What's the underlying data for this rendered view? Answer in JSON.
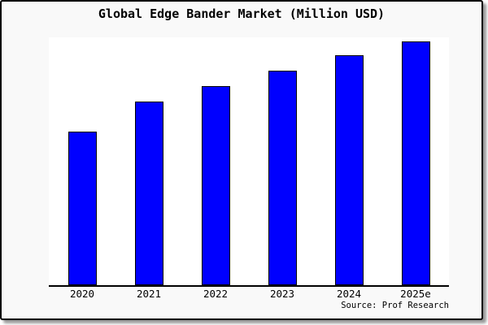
{
  "card": {
    "background_color": "#f9f9f9",
    "border_color": "#000000",
    "shadow_color": "#999999"
  },
  "chart_data": {
    "type": "bar",
    "title": "Global Edge Bander Market (Million USD)",
    "categories": [
      "2020",
      "2021",
      "2022",
      "2023",
      "2024",
      "2025e"
    ],
    "values": [
      63,
      75.3,
      81.7,
      88,
      94.3,
      100
    ],
    "units": "relative (no y-axis tick labels shown in chart)",
    "xlabel": "",
    "ylabel": "",
    "ylim": [
      0,
      100
    ],
    "grid": false,
    "legend": false,
    "bar_color": "#0000ff",
    "bar_border_color": "#000000",
    "plot_background": "#ffffff",
    "axis_color": "#000000",
    "source_note": "Source: Prof Research"
  }
}
